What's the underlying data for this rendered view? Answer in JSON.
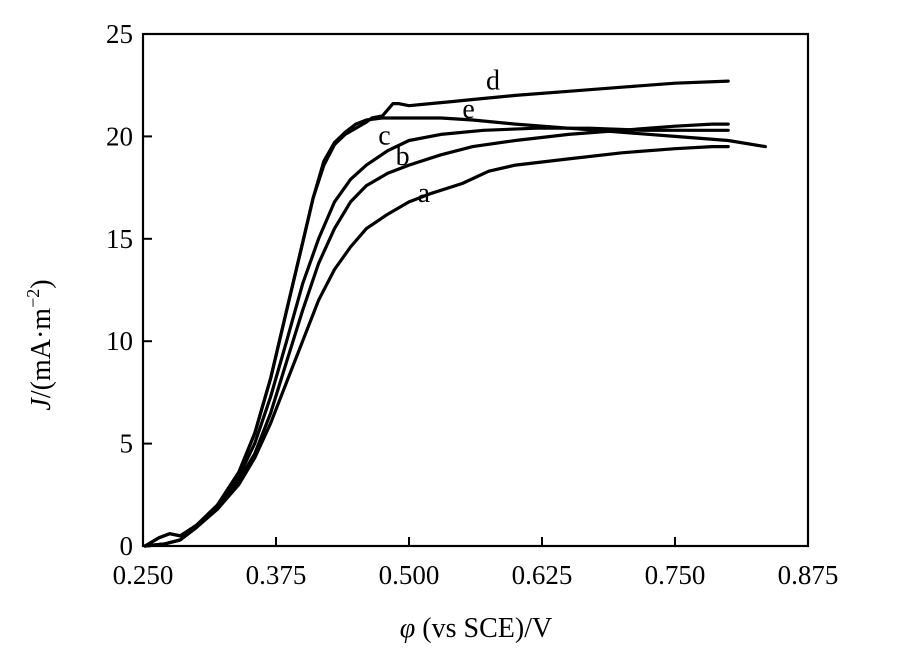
{
  "chart_data": {
    "type": "line",
    "title": "",
    "xlabel_symbol": "φ",
    "xlabel_rest": " (vs SCE)/V",
    "ylabel_symbol": "J",
    "ylabel_rest": "/(mA·m",
    "ylabel_exp": "−2",
    "ylabel_close": ")",
    "xlim": [
      0.25,
      0.875
    ],
    "ylim": [
      0,
      25
    ],
    "x_ticks": [
      0.25,
      0.375,
      0.5,
      0.625,
      0.75,
      0.875
    ],
    "x_tick_labels": [
      "0.250",
      "0.375",
      "0.500",
      "0.625",
      "0.750",
      "0.875"
    ],
    "y_ticks": [
      0,
      5,
      10,
      15,
      20,
      25
    ],
    "y_tick_labels": [
      "0",
      "5",
      "10",
      "15",
      "20",
      "25"
    ],
    "grid": false,
    "series": [
      {
        "name": "a",
        "label_at": [
          0.514,
          16.8
        ],
        "points": [
          [
            0.252,
            0
          ],
          [
            0.27,
            0.1
          ],
          [
            0.285,
            0.3
          ],
          [
            0.3,
            0.9
          ],
          [
            0.32,
            1.8
          ],
          [
            0.34,
            3.0
          ],
          [
            0.355,
            4.3
          ],
          [
            0.37,
            6.0
          ],
          [
            0.385,
            8.0
          ],
          [
            0.4,
            10.0
          ],
          [
            0.415,
            12.0
          ],
          [
            0.43,
            13.5
          ],
          [
            0.445,
            14.6
          ],
          [
            0.46,
            15.5
          ],
          [
            0.48,
            16.2
          ],
          [
            0.5,
            16.8
          ],
          [
            0.52,
            17.2
          ],
          [
            0.55,
            17.7
          ],
          [
            0.575,
            18.3
          ],
          [
            0.6,
            18.6
          ],
          [
            0.65,
            18.9
          ],
          [
            0.7,
            19.2
          ],
          [
            0.75,
            19.4
          ],
          [
            0.785,
            19.5
          ],
          [
            0.8,
            19.5
          ]
        ]
      },
      {
        "name": "b",
        "label_at": [
          0.494,
          18.6
        ],
        "points": [
          [
            0.252,
            0
          ],
          [
            0.27,
            0.1
          ],
          [
            0.285,
            0.3
          ],
          [
            0.3,
            0.9
          ],
          [
            0.32,
            1.8
          ],
          [
            0.34,
            3.2
          ],
          [
            0.355,
            4.5
          ],
          [
            0.37,
            6.5
          ],
          [
            0.385,
            9.0
          ],
          [
            0.4,
            11.5
          ],
          [
            0.415,
            13.8
          ],
          [
            0.43,
            15.5
          ],
          [
            0.445,
            16.8
          ],
          [
            0.46,
            17.6
          ],
          [
            0.48,
            18.2
          ],
          [
            0.5,
            18.6
          ],
          [
            0.53,
            19.1
          ],
          [
            0.56,
            19.5
          ],
          [
            0.6,
            19.8
          ],
          [
            0.65,
            20.1
          ],
          [
            0.7,
            20.3
          ],
          [
            0.75,
            20.5
          ],
          [
            0.785,
            20.6
          ],
          [
            0.8,
            20.6
          ]
        ]
      },
      {
        "name": "c",
        "label_at": [
          0.477,
          19.6
        ],
        "points": [
          [
            0.252,
            0
          ],
          [
            0.27,
            0.1
          ],
          [
            0.285,
            0.3
          ],
          [
            0.3,
            0.9
          ],
          [
            0.32,
            2.0
          ],
          [
            0.34,
            3.4
          ],
          [
            0.355,
            5.0
          ],
          [
            0.37,
            7.3
          ],
          [
            0.385,
            10.0
          ],
          [
            0.4,
            12.8
          ],
          [
            0.415,
            15.0
          ],
          [
            0.43,
            16.8
          ],
          [
            0.445,
            17.9
          ],
          [
            0.46,
            18.6
          ],
          [
            0.48,
            19.3
          ],
          [
            0.5,
            19.8
          ],
          [
            0.53,
            20.1
          ],
          [
            0.57,
            20.3
          ],
          [
            0.62,
            20.4
          ],
          [
            0.67,
            20.4
          ],
          [
            0.72,
            20.3
          ],
          [
            0.76,
            20.3
          ],
          [
            0.8,
            20.3
          ]
        ]
      },
      {
        "name": "d",
        "label_at": [
          0.579,
          22.3
        ],
        "points": [
          [
            0.252,
            0
          ],
          [
            0.265,
            0.4
          ],
          [
            0.275,
            0.6
          ],
          [
            0.285,
            0.5
          ],
          [
            0.3,
            1.0
          ],
          [
            0.32,
            2.0
          ],
          [
            0.34,
            3.6
          ],
          [
            0.355,
            5.5
          ],
          [
            0.37,
            8.2
          ],
          [
            0.385,
            11.5
          ],
          [
            0.4,
            14.8
          ],
          [
            0.41,
            17.0
          ],
          [
            0.42,
            18.6
          ],
          [
            0.43,
            19.6
          ],
          [
            0.44,
            20.1
          ],
          [
            0.45,
            20.4
          ],
          [
            0.46,
            20.7
          ],
          [
            0.465,
            20.9
          ],
          [
            0.475,
            21.0
          ],
          [
            0.485,
            21.6
          ],
          [
            0.49,
            21.6
          ],
          [
            0.5,
            21.5
          ],
          [
            0.52,
            21.6
          ],
          [
            0.54,
            21.7
          ],
          [
            0.56,
            21.8
          ],
          [
            0.6,
            22.0
          ],
          [
            0.65,
            22.2
          ],
          [
            0.7,
            22.4
          ],
          [
            0.75,
            22.6
          ],
          [
            0.8,
            22.7
          ]
        ]
      },
      {
        "name": "e",
        "label_at": [
          0.556,
          20.9
        ],
        "points": [
          [
            0.252,
            0
          ],
          [
            0.265,
            0.4
          ],
          [
            0.275,
            0.6
          ],
          [
            0.285,
            0.5
          ],
          [
            0.3,
            1.0
          ],
          [
            0.32,
            2.0
          ],
          [
            0.34,
            3.6
          ],
          [
            0.355,
            5.5
          ],
          [
            0.37,
            8.2
          ],
          [
            0.385,
            11.5
          ],
          [
            0.4,
            14.8
          ],
          [
            0.41,
            17.0
          ],
          [
            0.42,
            18.8
          ],
          [
            0.43,
            19.7
          ],
          [
            0.44,
            20.2
          ],
          [
            0.45,
            20.6
          ],
          [
            0.46,
            20.8
          ],
          [
            0.475,
            20.9
          ],
          [
            0.5,
            20.9
          ],
          [
            0.53,
            20.9
          ],
          [
            0.56,
            20.8
          ],
          [
            0.6,
            20.6
          ],
          [
            0.65,
            20.4
          ],
          [
            0.7,
            20.2
          ],
          [
            0.75,
            20.0
          ],
          [
            0.8,
            19.8
          ],
          [
            0.835,
            19.5
          ]
        ]
      }
    ]
  }
}
